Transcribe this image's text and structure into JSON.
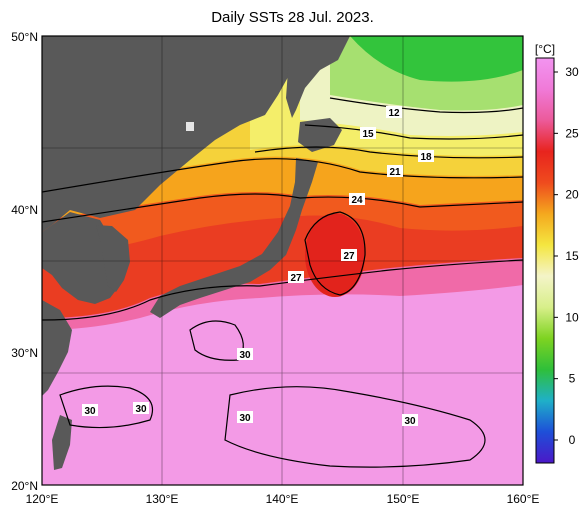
{
  "title": "Daily SSTs 28 Jul. 2023.",
  "colorbar": {
    "unit": "[°C]",
    "ticks": [
      "0",
      "5",
      "10",
      "15",
      "20",
      "25",
      "30"
    ],
    "stops": [
      "#4b18c8",
      "#1e4fd8",
      "#1fb0c8",
      "#2fbf3a",
      "#7ed321",
      "#d8ef8a",
      "#f4f4c8",
      "#f4e640",
      "#f4a81e",
      "#ef4b1e",
      "#e8241e",
      "#ec5a9a",
      "#f07ad8",
      "#f294f0"
    ]
  },
  "axes": {
    "x_ticks": [
      "120°E",
      "130°E",
      "140°E",
      "150°E",
      "160°E"
    ],
    "y_ticks": [
      "50°N",
      "40°N",
      "30°N",
      "20°N"
    ]
  },
  "contour_labels": [
    "12",
    "15",
    "18",
    "21",
    "24",
    "27",
    "27",
    "30",
    "30",
    "30",
    "30",
    "30"
  ],
  "colors": {
    "land": "#595959",
    "ocean_warm": "#f39ae6",
    "ocean_hot": "#e8351e",
    "ocean_mid": "#f6a21a",
    "ocean_cool": "#f4e94a",
    "ocean_cold": "#7fd83a"
  }
}
